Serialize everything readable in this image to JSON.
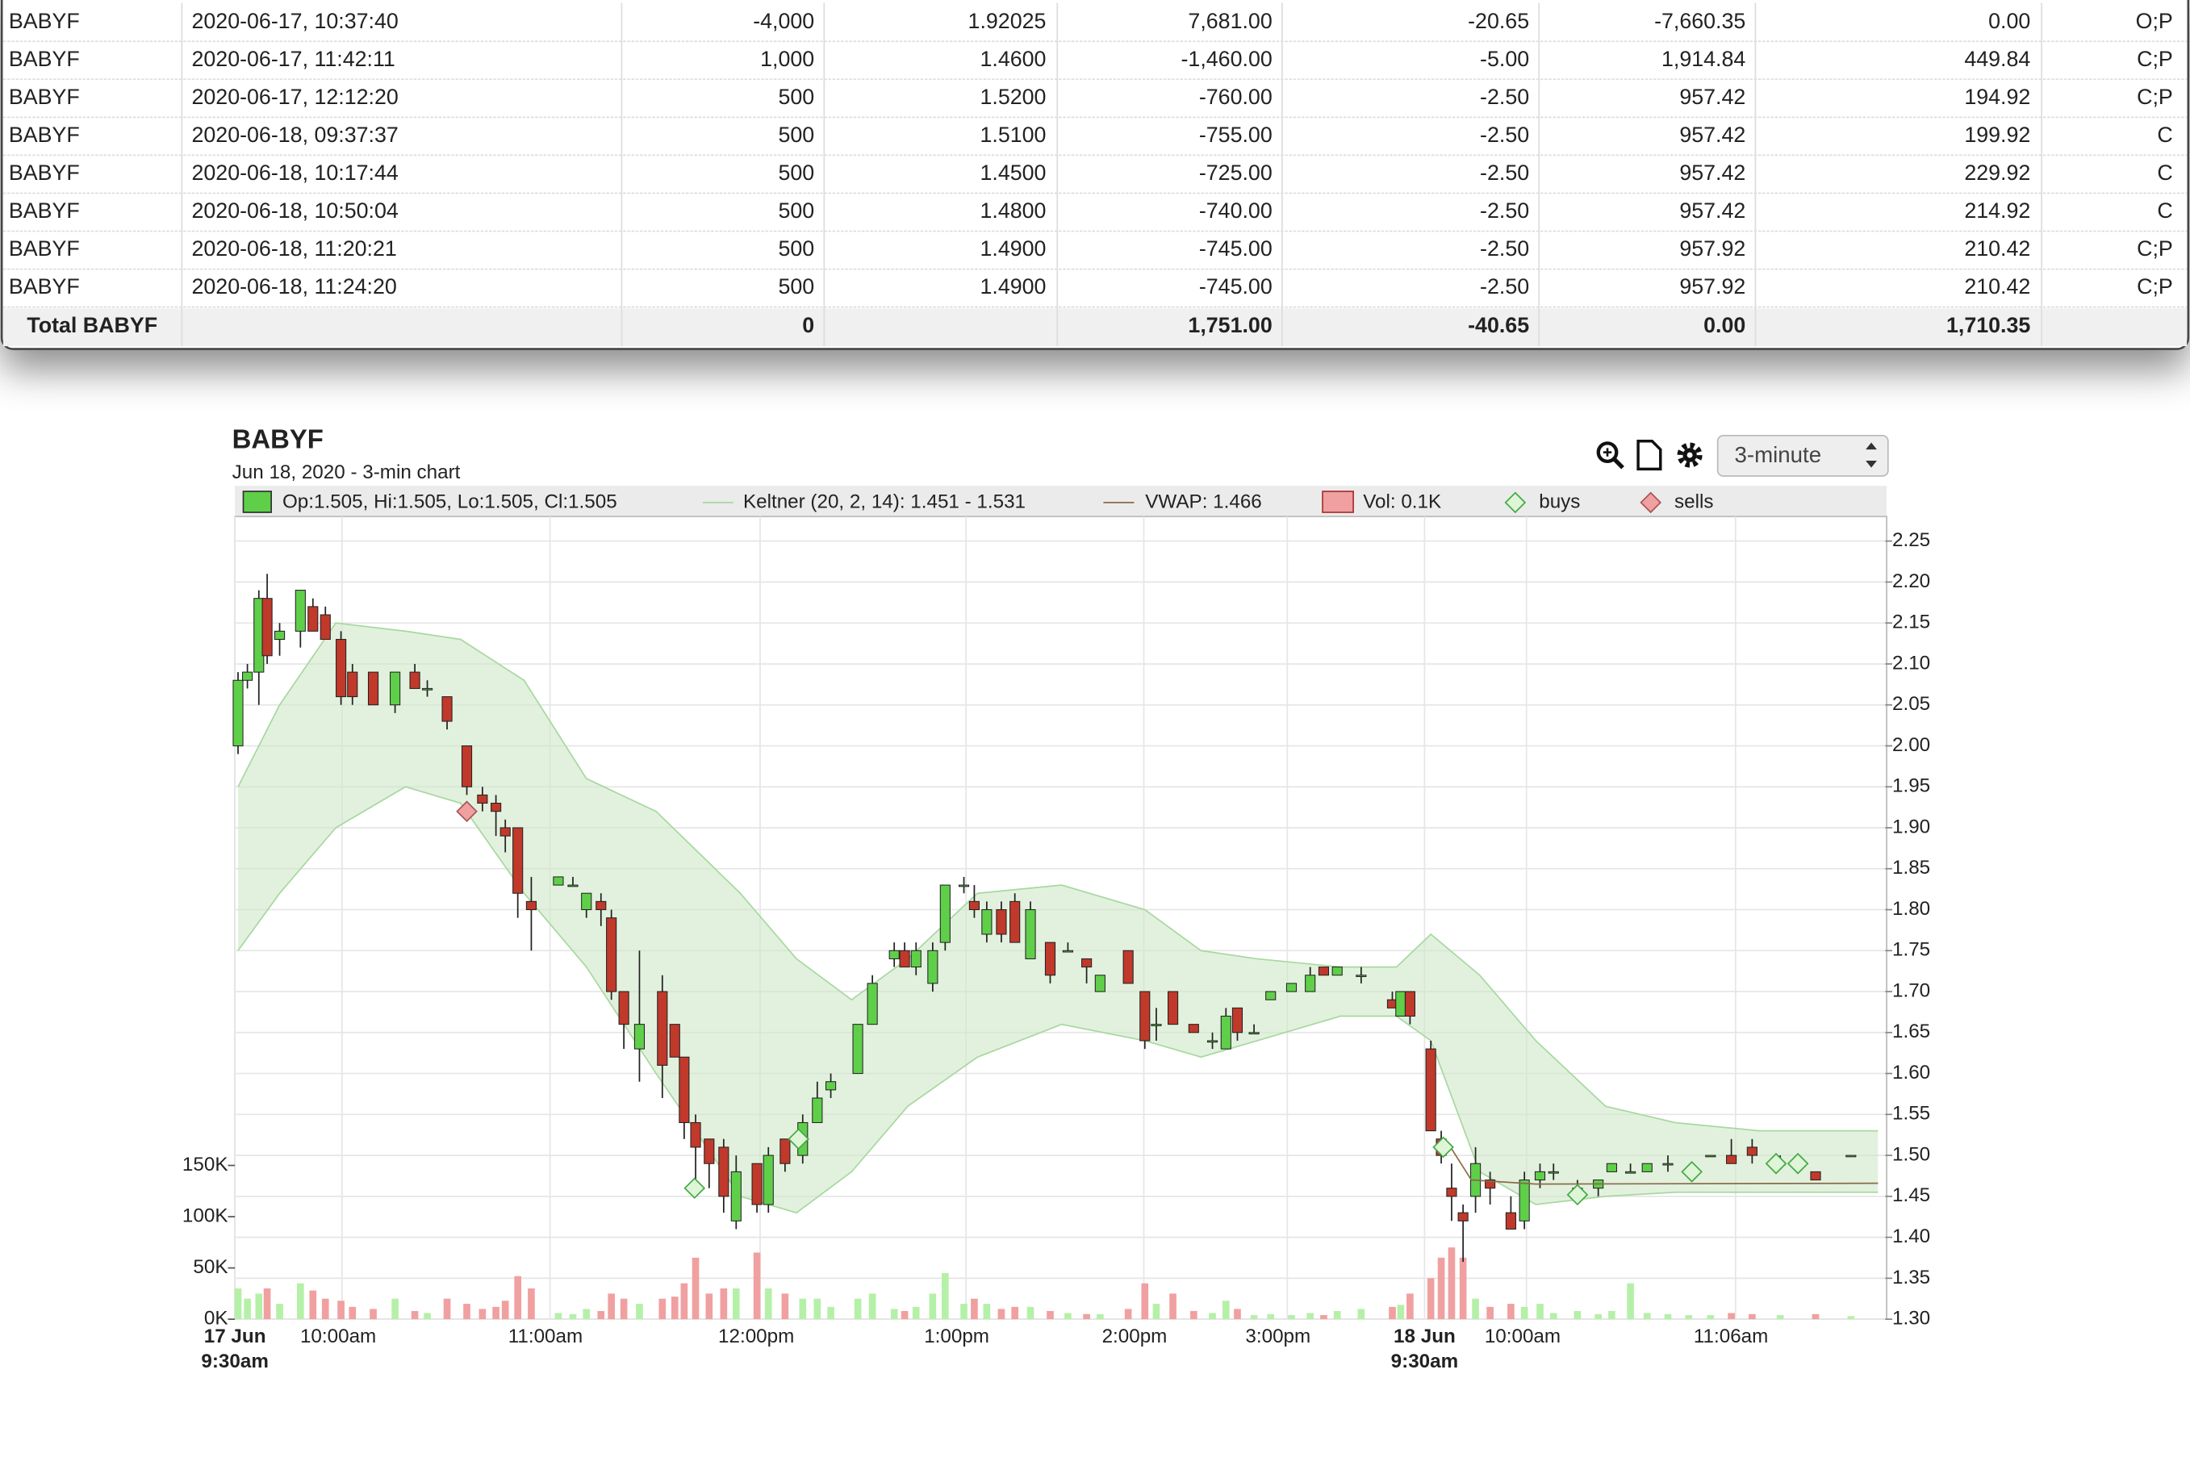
{
  "table": {
    "rows": [
      [
        "BABYF",
        "2020-06-17, 10:37:40",
        "-4,000",
        "1.92025",
        "7,681.00",
        "-20.65",
        "-7,660.35",
        "0.00",
        "O;P"
      ],
      [
        "BABYF",
        "2020-06-17, 11:42:11",
        "1,000",
        "1.4600",
        "-1,460.00",
        "-5.00",
        "1,914.84",
        "449.84",
        "C;P"
      ],
      [
        "BABYF",
        "2020-06-17, 12:12:20",
        "500",
        "1.5200",
        "-760.00",
        "-2.50",
        "957.42",
        "194.92",
        "C;P"
      ],
      [
        "BABYF",
        "2020-06-18, 09:37:37",
        "500",
        "1.5100",
        "-755.00",
        "-2.50",
        "957.42",
        "199.92",
        "C"
      ],
      [
        "BABYF",
        "2020-06-18, 10:17:44",
        "500",
        "1.4500",
        "-725.00",
        "-2.50",
        "957.42",
        "229.92",
        "C"
      ],
      [
        "BABYF",
        "2020-06-18, 10:50:04",
        "500",
        "1.4800",
        "-740.00",
        "-2.50",
        "957.42",
        "214.92",
        "C"
      ],
      [
        "BABYF",
        "2020-06-18, 11:20:21",
        "500",
        "1.4900",
        "-745.00",
        "-2.50",
        "957.92",
        "210.42",
        "C;P"
      ],
      [
        "BABYF",
        "2020-06-18, 11:24:20",
        "500",
        "1.4900",
        "-745.00",
        "-2.50",
        "957.92",
        "210.42",
        "C;P"
      ]
    ],
    "total": [
      "Total BABYF",
      "0",
      "1,751.00",
      "-40.65",
      "0.00",
      "1,710.35"
    ]
  },
  "chart_data": {
    "type": "candlestick",
    "title": "BABYF",
    "subtitle": "Jun 18, 2020 - 3-min chart",
    "interval": "3-minute",
    "legend": {
      "ohlc": "Op:1.505, Hi:1.505, Lo:1.505, Cl:1.505",
      "keltner": "Keltner (20, 2, 14): 1.451 - 1.531",
      "vwap": "VWAP: 1.466",
      "volume": "Vol: 0.1K",
      "buys": "buys",
      "sells": "sells"
    },
    "up_color": "#5fcf4a",
    "down_color": "#c0392b",
    "up_volume_color": "#b5f0a8",
    "down_volume_color": "#f0a0a0",
    "band_color": "#cfe8c8",
    "vwap_color": "#8a6b4a",
    "xlim": [
      0,
      158.7
    ],
    "xticks": [
      {
        "value": 0,
        "label": "17 Jun",
        "label2": "9:30am"
      },
      {
        "value": 10.3,
        "label": "10:00am"
      },
      {
        "value": 30.3,
        "label": "11:00am"
      },
      {
        "value": 50.5,
        "label": "12:00pm"
      },
      {
        "value": 70.3,
        "label": "1:00pm"
      },
      {
        "value": 87.4,
        "label": "2:00pm"
      },
      {
        "value": 101.2,
        "label": "3:00pm"
      },
      {
        "value": 114.4,
        "label": "18 Jun",
        "label2": "9:30am"
      },
      {
        "value": 124.2,
        "label": "10:00am"
      },
      {
        "value": 144.3,
        "label": "11:06am"
      }
    ],
    "ylim": [
      1.3,
      2.28
    ],
    "yticks": [
      {
        "value": 1.3,
        "label": "1.30"
      },
      {
        "value": 1.35,
        "label": "1.35"
      },
      {
        "value": 1.4,
        "label": "1.40"
      },
      {
        "value": 1.45,
        "label": "1.45"
      },
      {
        "value": 1.5,
        "label": "1.50"
      },
      {
        "value": 1.55,
        "label": "1.55"
      },
      {
        "value": 1.6,
        "label": "1.60"
      },
      {
        "value": 1.65,
        "label": "1.65"
      },
      {
        "value": 1.7,
        "label": "1.70"
      },
      {
        "value": 1.75,
        "label": "1.75"
      },
      {
        "value": 1.8,
        "label": "1.80"
      },
      {
        "value": 1.85,
        "label": "1.85"
      },
      {
        "value": 1.9,
        "label": "1.90"
      },
      {
        "value": 1.95,
        "label": "1.95"
      },
      {
        "value": 2.0,
        "label": "2.00"
      },
      {
        "value": 2.05,
        "label": "2.05"
      },
      {
        "value": 2.1,
        "label": "2.10"
      },
      {
        "value": 2.15,
        "label": "2.15"
      },
      {
        "value": 2.2,
        "label": "2.20"
      },
      {
        "value": 2.25,
        "label": "2.25"
      }
    ],
    "y2lim": [
      0,
      783000
    ],
    "y2ticks": [
      {
        "value": 0,
        "label": "0K"
      },
      {
        "value": 50000,
        "label": "50K"
      },
      {
        "value": 100000,
        "label": "100K"
      },
      {
        "value": 150000,
        "label": "150K"
      }
    ],
    "candles": {
      "x": [
        0.3,
        1.2,
        2.3,
        3.1,
        4.3,
        6.3,
        7.5,
        8.7,
        10.2,
        11.3,
        13.3,
        15.4,
        17.3,
        18.5,
        20.4,
        22.3,
        23.8,
        25.1,
        26.0,
        27.2,
        28.5,
        31.1,
        32.5,
        33.8,
        35.2,
        36.2,
        37.4,
        38.9,
        41.1,
        42.3,
        43.2,
        44.3,
        45.6,
        47.0,
        48.2,
        50.2,
        51.3,
        52.9,
        54.6,
        56.0,
        57.3,
        59.9,
        61.3,
        63.4,
        64.4,
        65.5,
        67.1,
        68.3,
        70.1,
        71.1,
        72.3,
        73.7,
        75.0,
        76.5,
        78.4,
        80.1,
        81.9,
        83.2,
        85.9,
        87.5,
        88.6,
        90.2,
        92.2,
        94.0,
        95.3,
        96.4,
        98.0,
        99.6,
        101.6,
        103.4,
        104.7,
        106.0,
        108.3,
        111.3,
        112.1,
        113.0,
        115.0,
        116.0,
        117.0,
        118.1,
        119.3,
        120.7,
        122.7,
        124.0,
        125.5,
        126.8,
        129.1,
        131.1,
        132.4,
        134.2,
        135.8,
        137.8,
        139.8,
        141.9,
        143.9,
        145.9,
        148.6,
        152.0,
        155.4
      ],
      "open": [
        2.0,
        2.08,
        2.09,
        2.18,
        2.13,
        2.14,
        2.17,
        2.16,
        2.13,
        2.09,
        2.09,
        2.05,
        2.09,
        2.07,
        2.06,
        2.0,
        1.94,
        1.93,
        1.9,
        1.9,
        1.81,
        1.83,
        1.83,
        1.8,
        1.81,
        1.79,
        1.7,
        1.63,
        1.7,
        1.66,
        1.62,
        1.54,
        1.52,
        1.51,
        1.42,
        1.49,
        1.44,
        1.52,
        1.5,
        1.54,
        1.58,
        1.6,
        1.66,
        1.74,
        1.75,
        1.73,
        1.71,
        1.76,
        1.83,
        1.81,
        1.77,
        1.8,
        1.81,
        1.74,
        1.76,
        1.75,
        1.74,
        1.7,
        1.75,
        1.7,
        1.66,
        1.7,
        1.66,
        1.64,
        1.63,
        1.68,
        1.65,
        1.69,
        1.7,
        1.7,
        1.73,
        1.72,
        1.72,
        1.69,
        1.67,
        1.7,
        1.63,
        1.52,
        1.46,
        1.43,
        1.45,
        1.47,
        1.43,
        1.42,
        1.47,
        1.48,
        1.46,
        1.46,
        1.48,
        1.48,
        1.48,
        1.49,
        1.48,
        1.5,
        1.5,
        1.51,
        1.49,
        1.48,
        1.5
      ],
      "high": [
        2.09,
        2.1,
        2.19,
        2.21,
        2.15,
        2.19,
        2.18,
        2.17,
        2.14,
        2.1,
        2.09,
        2.09,
        2.1,
        2.08,
        2.06,
        2.0,
        1.95,
        1.94,
        1.91,
        1.9,
        1.84,
        1.84,
        1.84,
        1.82,
        1.82,
        1.8,
        1.7,
        1.75,
        1.72,
        1.66,
        1.62,
        1.55,
        1.52,
        1.52,
        1.5,
        1.49,
        1.51,
        1.52,
        1.55,
        1.59,
        1.6,
        1.66,
        1.72,
        1.76,
        1.76,
        1.76,
        1.76,
        1.83,
        1.84,
        1.83,
        1.81,
        1.81,
        1.82,
        1.81,
        1.76,
        1.76,
        1.74,
        1.72,
        1.75,
        1.7,
        1.68,
        1.7,
        1.66,
        1.65,
        1.68,
        1.68,
        1.66,
        1.7,
        1.71,
        1.73,
        1.73,
        1.73,
        1.73,
        1.7,
        1.7,
        1.7,
        1.64,
        1.53,
        1.49,
        1.44,
        1.51,
        1.48,
        1.45,
        1.48,
        1.49,
        1.49,
        1.47,
        1.47,
        1.49,
        1.49,
        1.49,
        1.5,
        1.48,
        1.5,
        1.52,
        1.52,
        1.5,
        1.48,
        1.5
      ],
      "low": [
        1.99,
        2.07,
        2.05,
        2.1,
        2.11,
        2.12,
        2.14,
        2.13,
        2.05,
        2.05,
        2.05,
        2.04,
        2.07,
        2.06,
        2.02,
        1.94,
        1.92,
        1.89,
        1.87,
        1.79,
        1.75,
        1.83,
        1.83,
        1.79,
        1.78,
        1.69,
        1.63,
        1.59,
        1.57,
        1.62,
        1.52,
        1.47,
        1.46,
        1.43,
        1.41,
        1.43,
        1.43,
        1.48,
        1.49,
        1.54,
        1.57,
        1.6,
        1.66,
        1.73,
        1.73,
        1.72,
        1.7,
        1.75,
        1.82,
        1.79,
        1.76,
        1.76,
        1.76,
        1.74,
        1.71,
        1.75,
        1.71,
        1.7,
        1.71,
        1.63,
        1.64,
        1.66,
        1.65,
        1.63,
        1.63,
        1.64,
        1.65,
        1.69,
        1.7,
        1.7,
        1.72,
        1.72,
        1.71,
        1.68,
        1.67,
        1.66,
        1.53,
        1.49,
        1.42,
        1.37,
        1.43,
        1.44,
        1.41,
        1.41,
        1.46,
        1.47,
        1.45,
        1.45,
        1.48,
        1.48,
        1.48,
        1.48,
        1.48,
        1.5,
        1.49,
        1.49,
        1.49,
        1.47,
        1.5
      ],
      "close": [
        2.08,
        2.09,
        2.18,
        2.11,
        2.14,
        2.19,
        2.14,
        2.13,
        2.06,
        2.06,
        2.05,
        2.09,
        2.07,
        2.07,
        2.03,
        1.95,
        1.93,
        1.92,
        1.89,
        1.82,
        1.8,
        1.84,
        1.83,
        1.82,
        1.8,
        1.7,
        1.66,
        1.66,
        1.61,
        1.62,
        1.54,
        1.51,
        1.49,
        1.45,
        1.48,
        1.44,
        1.5,
        1.49,
        1.54,
        1.57,
        1.59,
        1.66,
        1.71,
        1.75,
        1.73,
        1.75,
        1.75,
        1.83,
        1.83,
        1.8,
        1.8,
        1.77,
        1.76,
        1.8,
        1.72,
        1.75,
        1.73,
        1.72,
        1.71,
        1.64,
        1.66,
        1.66,
        1.65,
        1.64,
        1.67,
        1.65,
        1.65,
        1.7,
        1.71,
        1.72,
        1.72,
        1.73,
        1.72,
        1.68,
        1.7,
        1.67,
        1.53,
        1.5,
        1.45,
        1.42,
        1.49,
        1.46,
        1.41,
        1.47,
        1.48,
        1.48,
        1.46,
        1.47,
        1.49,
        1.48,
        1.49,
        1.49,
        1.48,
        1.5,
        1.49,
        1.5,
        1.49,
        1.47,
        1.5
      ],
      "volume": [
        30000,
        20000,
        25000,
        30000,
        15000,
        35000,
        28000,
        20000,
        18000,
        12000,
        10000,
        20000,
        8000,
        6000,
        20000,
        15000,
        10000,
        12000,
        18000,
        42000,
        30000,
        6000,
        5000,
        10000,
        8000,
        25000,
        20000,
        15000,
        20000,
        22000,
        35000,
        60000,
        25000,
        30000,
        30000,
        65000,
        30000,
        25000,
        20000,
        20000,
        12000,
        20000,
        25000,
        10000,
        8000,
        12000,
        25000,
        45000,
        15000,
        20000,
        15000,
        10000,
        12000,
        12000,
        8000,
        6000,
        5000,
        5000,
        10000,
        35000,
        15000,
        25000,
        8000,
        6000,
        18000,
        10000,
        4000,
        5000,
        4000,
        6000,
        4000,
        8000,
        10000,
        12000,
        14000,
        25000,
        40000,
        60000,
        70000,
        60000,
        20000,
        12000,
        15000,
        12000,
        15000,
        6000,
        8000,
        5000,
        8000,
        35000,
        6000,
        5000,
        4000,
        4000,
        6000,
        5000,
        4000,
        5000,
        3000
      ]
    },
    "keltner": {
      "x": [
        0.3,
        4.3,
        9.7,
        16.4,
        21.7,
        27.8,
        33.8,
        40.5,
        48.6,
        54.0,
        59.3,
        64.7,
        71.4,
        79.5,
        87.5,
        92.9,
        98.3,
        106.3,
        111.7,
        115.0,
        119.7,
        125.1,
        131.8,
        138.5,
        146.6,
        158.0
      ],
      "upper": [
        1.95,
        2.05,
        2.15,
        2.14,
        2.13,
        2.08,
        1.96,
        1.92,
        1.82,
        1.74,
        1.69,
        1.74,
        1.82,
        1.83,
        1.8,
        1.75,
        1.74,
        1.73,
        1.73,
        1.77,
        1.72,
        1.64,
        1.56,
        1.54,
        1.53,
        1.53
      ],
      "lower": [
        1.75,
        1.82,
        1.9,
        1.95,
        1.93,
        1.82,
        1.73,
        1.6,
        1.45,
        1.43,
        1.48,
        1.56,
        1.62,
        1.66,
        1.64,
        1.62,
        1.64,
        1.67,
        1.67,
        1.64,
        1.48,
        1.44,
        1.45,
        1.455,
        1.455,
        1.455
      ]
    },
    "vwap": {
      "x": [
        116.4,
        118.9,
        125.1,
        158.0
      ],
      "values": [
        1.52,
        1.47,
        1.465,
        1.466
      ]
    },
    "buys": {
      "x": [
        44.2,
        54.2,
        116.2,
        129.1,
        140.1,
        148.2,
        150.3
      ],
      "values": [
        1.46,
        1.52,
        1.51,
        1.452,
        1.48,
        1.49,
        1.49
      ]
    },
    "sells": {
      "x": [
        22.3
      ],
      "values": [
        1.92
      ]
    }
  }
}
